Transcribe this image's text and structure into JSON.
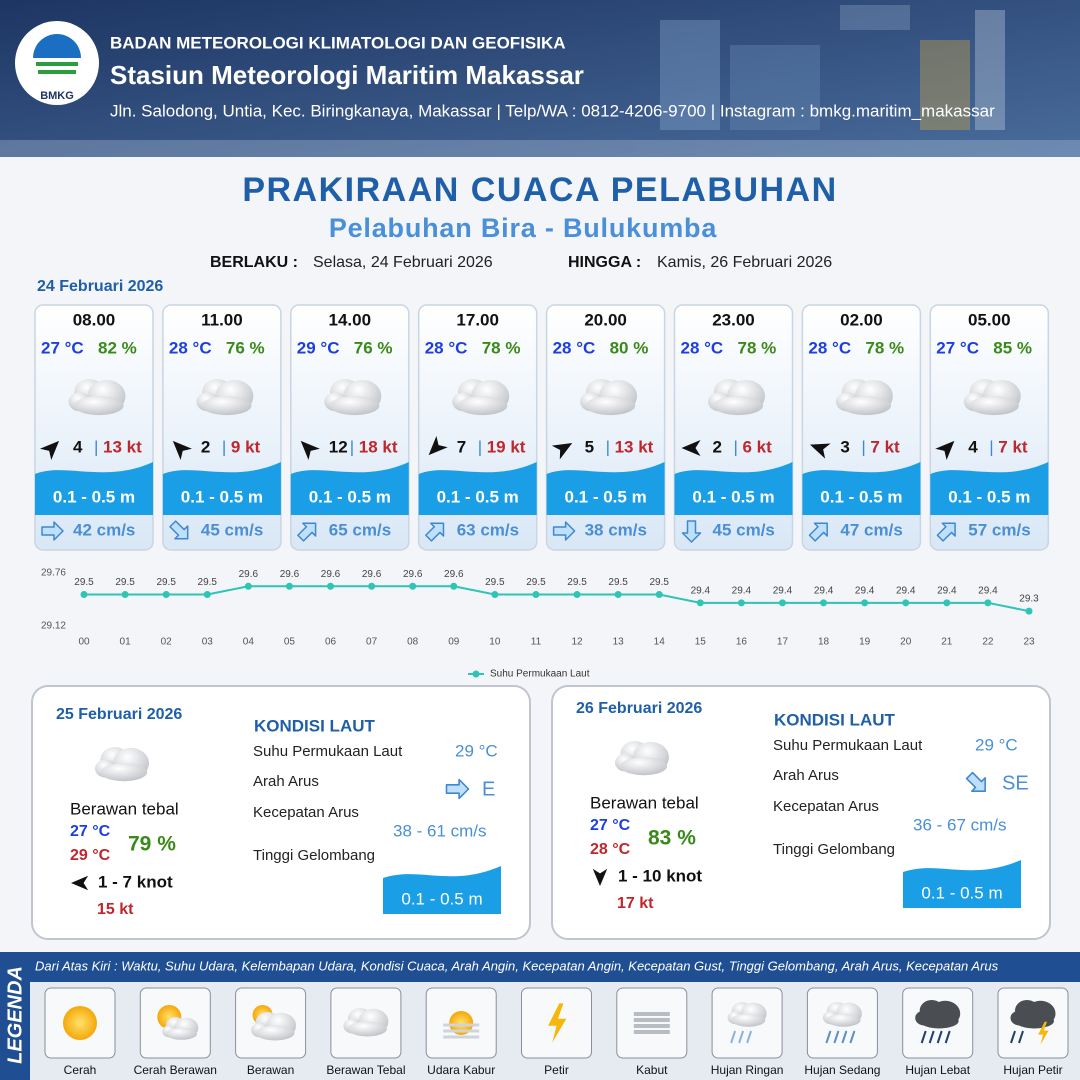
{
  "header": {
    "agency": "BADAN METEOROLOGI KLIMATOLOGI DAN GEOFISIKA",
    "station": "Stasiun Meteorologi Maritim Makassar",
    "address": "Jln. Salodong, Untia, Kec. Biringkanaya, Makassar | Telp/WA : 0812-4206-9700 | Instagram : bmkg.maritim_makassar",
    "logo": "BMKG"
  },
  "title": "PRAKIRAAN CUACA PELABUHAN",
  "subtitle": "Pelabuhan Bira - Bulukumba",
  "validity": {
    "from_label": "BERLAKU :",
    "from": "Selasa, 24 Februari 2026",
    "to_label": "HINGGA :",
    "to": "Kamis, 26 Februari 2026"
  },
  "today": {
    "date": "24 Februari 2026",
    "cards": [
      {
        "time": "08.00",
        "temp": "27 °C",
        "humidity": "82 %",
        "wind_deg": 45,
        "wind": 4,
        "gust": "13 kt",
        "wave": "0.1 - 0.5 m",
        "current_deg": 90,
        "current": "42 cm/s"
      },
      {
        "time": "11.00",
        "temp": "28 °C",
        "humidity": "76 %",
        "wind_deg": 315,
        "wind": 2,
        "gust": "9 kt",
        "wave": "0.1 - 0.5 m",
        "current_deg": 135,
        "current": "45 cm/s"
      },
      {
        "time": "14.00",
        "temp": "29 °C",
        "humidity": "76 %",
        "wind_deg": 315,
        "wind": 12,
        "gust": "18 kt",
        "wave": "0.1 - 0.5 m",
        "current_deg": 45,
        "current": "65 cm/s"
      },
      {
        "time": "17.00",
        "temp": "28 °C",
        "humidity": "78 %",
        "wind_deg": 225,
        "wind": 7,
        "gust": "19 kt",
        "wave": "0.1 - 0.5 m",
        "current_deg": 45,
        "current": "63 cm/s"
      },
      {
        "time": "20.00",
        "temp": "28 °C",
        "humidity": "80 %",
        "wind_deg": 60,
        "wind": 5,
        "gust": "13 kt",
        "wave": "0.1 - 0.5 m",
        "current_deg": 90,
        "current": "38 cm/s"
      },
      {
        "time": "23.00",
        "temp": "28 °C",
        "humidity": "78 %",
        "wind_deg": 270,
        "wind": 2,
        "gust": "6 kt",
        "wave": "0.1 - 0.5 m",
        "current_deg": 180,
        "current": "45 cm/s"
      },
      {
        "time": "02.00",
        "temp": "28 °C",
        "humidity": "78 %",
        "wind_deg": 290,
        "wind": 3,
        "gust": "7 kt",
        "wave": "0.1 - 0.5 m",
        "current_deg": 45,
        "current": "47 cm/s"
      },
      {
        "time": "05.00",
        "temp": "27 °C",
        "humidity": "85 %",
        "wind_deg": 45,
        "wind": 4,
        "gust": "7 kt",
        "wave": "0.1 - 0.5 m",
        "current_deg": 45,
        "current": "57 cm/s"
      }
    ]
  },
  "chart_data": {
    "type": "line",
    "categories": [
      "00",
      "01",
      "02",
      "03",
      "04",
      "05",
      "06",
      "07",
      "08",
      "09",
      "10",
      "11",
      "12",
      "13",
      "14",
      "15",
      "16",
      "17",
      "18",
      "19",
      "20",
      "21",
      "22",
      "23"
    ],
    "series": [
      {
        "name": "Suhu Permukaan Laut",
        "color": "#2ec4b6",
        "values": [
          29.5,
          29.5,
          29.5,
          29.5,
          29.6,
          29.6,
          29.6,
          29.6,
          29.6,
          29.6,
          29.5,
          29.5,
          29.5,
          29.5,
          29.5,
          29.4,
          29.4,
          29.4,
          29.4,
          29.4,
          29.4,
          29.4,
          29.4,
          29.3
        ]
      }
    ],
    "ylim": [
      29.12,
      29.76
    ],
    "yticks": [
      29.12,
      29.76
    ],
    "grid": false,
    "legend": "bottom"
  },
  "days": [
    {
      "date": "25 Februari 2026",
      "condition": "Berawan tebal",
      "temp_min": "27 °C",
      "temp_max": "29 °C",
      "humidity": "79 %",
      "wind_deg": 270,
      "wind": "1 - 7 knot",
      "gust": "15 kt",
      "sea_title": "KONDISI LAUT",
      "sst_label": "Suhu Permukaan Laut",
      "sst": "29 °C",
      "current_dir_label": "Arah Arus",
      "current_dir_deg": 90,
      "current_dir": "E",
      "speed_label": "Kecepatan Arus",
      "speed": "38 - 61 cm/s",
      "wave_label": "Tinggi Gelombang",
      "wave": "0.1 - 0.5 m"
    },
    {
      "date": "26 Februari 2026",
      "condition": "Berawan tebal",
      "temp_min": "27 °C",
      "temp_max": "28 °C",
      "humidity": "83 %",
      "wind_deg": 180,
      "wind": "1 - 10 knot",
      "gust": "17 kt",
      "sea_title": "KONDISI LAUT",
      "sst_label": "Suhu Permukaan Laut",
      "sst": "29 °C",
      "current_dir_label": "Arah Arus",
      "current_dir_deg": 135,
      "current_dir": "SE",
      "speed_label": "Kecepatan Arus",
      "speed": "36 - 67 cm/s",
      "wave_label": "Tinggi Gelombang",
      "wave": "0.1 - 0.5 m"
    }
  ],
  "legend": {
    "title": "LEGENDA",
    "description": "Dari Atas Kiri : Waktu, Suhu Udara, Kelembapan Udara, Kondisi Cuaca, Arah Angin, Kecepatan Angin, Kecepatan Gust, Tinggi Gelombang, Arah Arus, Kecepatan Arus",
    "items": [
      "Cerah",
      "Cerah Berawan",
      "Berawan",
      "Berawan Tebal",
      "Udara Kabur",
      "Petir",
      "Kabut",
      "Hujan Ringan",
      "Hujan Sedang",
      "Hujan Lebat",
      "Hujan Petir"
    ]
  }
}
